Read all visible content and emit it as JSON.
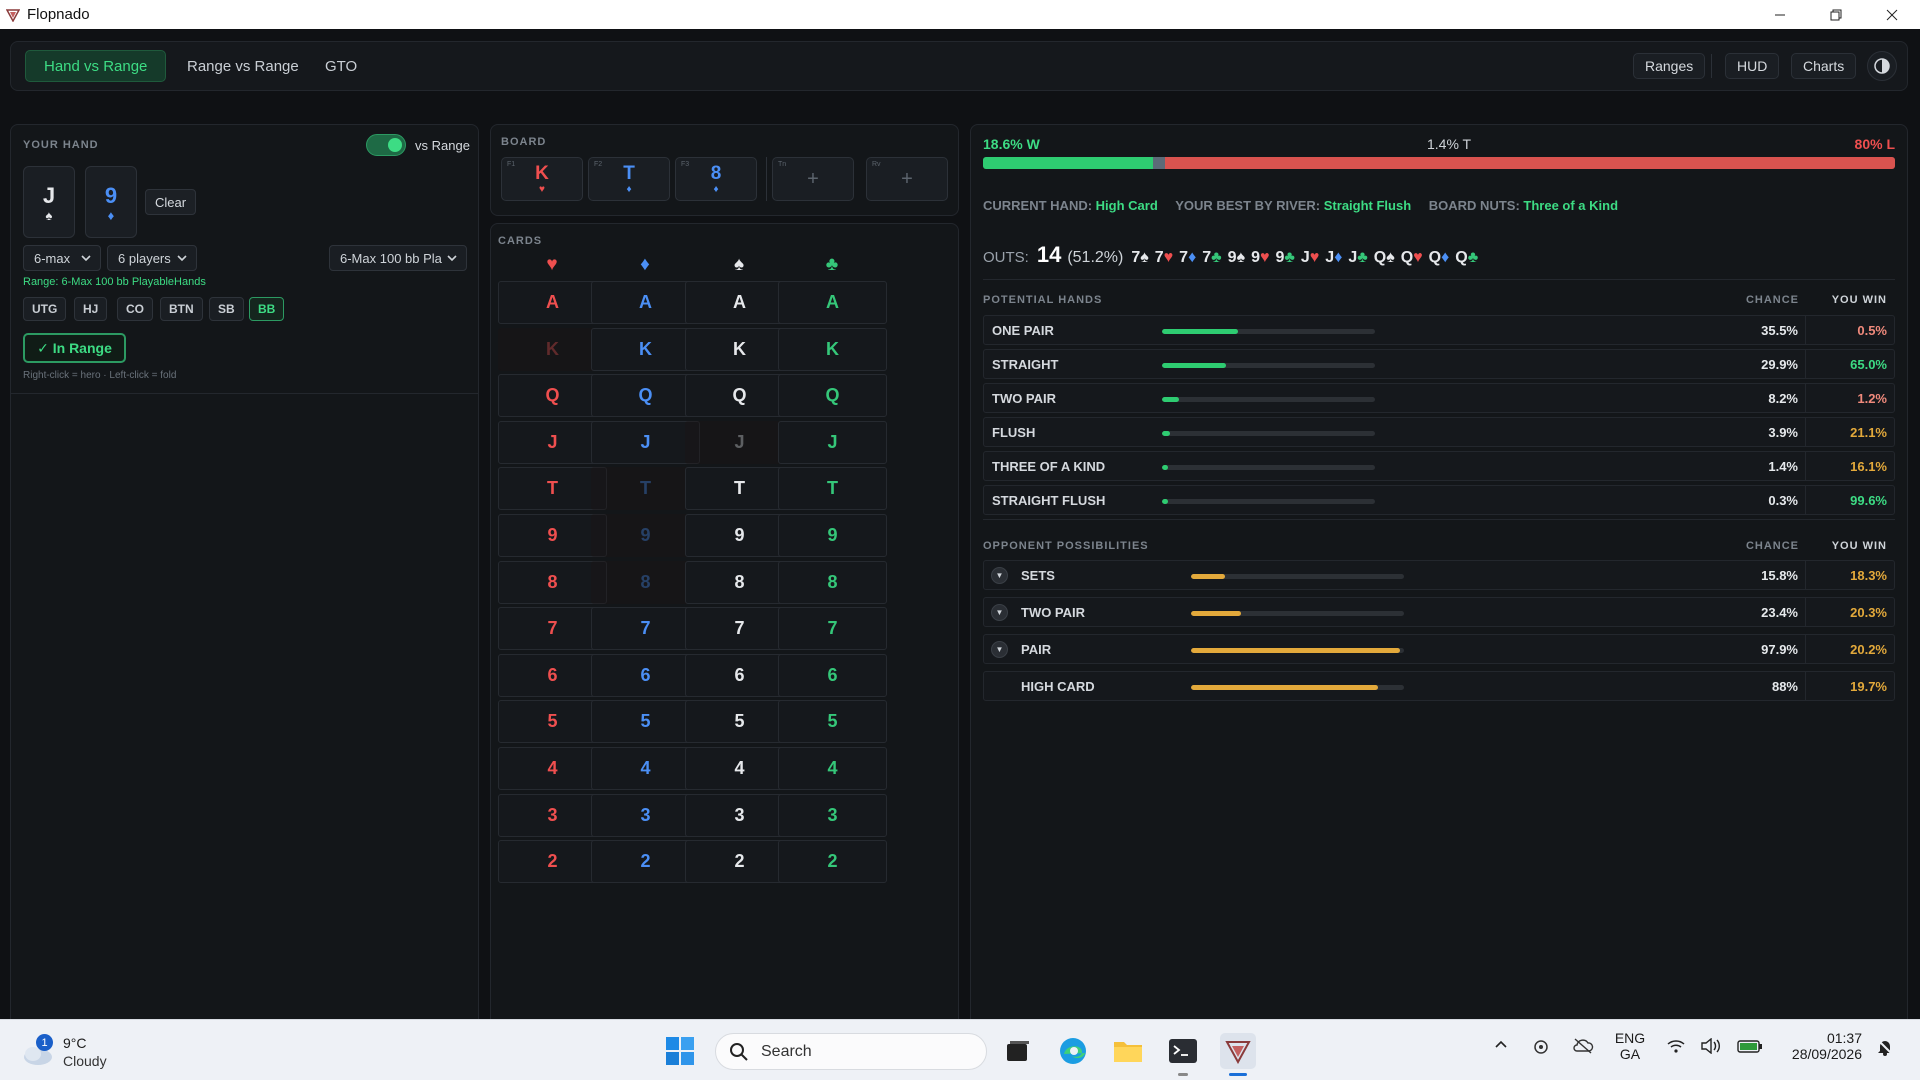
{
  "window": {
    "title": "Flopnado"
  },
  "nav": {
    "tabs": [
      {
        "label": "Hand vs Range"
      },
      {
        "label": "Range vs Range"
      },
      {
        "label": "GTO"
      }
    ],
    "right_buttons": [
      {
        "label": "Ranges"
      },
      {
        "label": "HUD"
      },
      {
        "label": "Charts"
      }
    ]
  },
  "hand": {
    "section_label": "YOUR HAND",
    "toggle_label": "vs Range",
    "cards": [
      {
        "rank": "J",
        "suit": "♠"
      },
      {
        "rank": "9",
        "suit": "♦"
      }
    ],
    "clear_label": "Clear",
    "table_size": "6-max",
    "players": "6 players",
    "range_preset": "6-Max 100 bb Pla",
    "range_text": "Range: 6-Max 100 bb PlayableHands",
    "positions": [
      "UTG",
      "HJ",
      "CO",
      "BTN",
      "SB",
      "BB"
    ],
    "active_position": "BB",
    "in_range_label": "✓ In Range",
    "hint": "Right-click = hero · Left-click = fold"
  },
  "board": {
    "section_label": "BOARD",
    "cards": [
      {
        "slot": "F1",
        "rank": "K",
        "suit": "♥"
      },
      {
        "slot": "F2",
        "rank": "T",
        "suit": "♦"
      },
      {
        "slot": "F3",
        "rank": "8",
        "suit": "♦"
      },
      {
        "slot": "Tn",
        "rank": "+",
        "suit": ""
      },
      {
        "slot": "Rv",
        "rank": "+",
        "suit": ""
      }
    ]
  },
  "cards_grid": {
    "section_label": "CARDS",
    "suits": [
      "♥",
      "♦",
      "♠",
      "♣"
    ],
    "ranks": [
      "A",
      "K",
      "Q",
      "J",
      "T",
      "9",
      "8",
      "7",
      "6",
      "5",
      "4",
      "3",
      "2"
    ],
    "used": [
      {
        "rank": "K",
        "suit": 0
      },
      {
        "rank": "T",
        "suit": 1
      },
      {
        "rank": "J",
        "suit": 2
      },
      {
        "rank": "9",
        "suit": 1
      },
      {
        "rank": "8",
        "suit": 1
      }
    ]
  },
  "equity": {
    "win_label": "18.6% W",
    "tie_label": "1.4% T",
    "loss_label": "80% L",
    "win": 18.6,
    "tie": 1.4,
    "loss": 80,
    "current_hand_label": "CURRENT HAND:",
    "current_hand": "High Card",
    "best_river_label": "YOUR BEST BY RIVER:",
    "best_river": "Straight Flush",
    "board_nuts_label": "BOARD NUTS:",
    "board_nuts": "Three of a Kind",
    "outs_label": "OUTS:",
    "outs_count": "14",
    "outs_pct": "(51.2%)",
    "outs_cards": [
      {
        "rank": "7",
        "suit": "♠"
      },
      {
        "rank": "7",
        "suit": "♥"
      },
      {
        "rank": "7",
        "suit": "♦"
      },
      {
        "rank": "7",
        "suit": "♣"
      },
      {
        "rank": "9",
        "suit": "♠"
      },
      {
        "rank": "9",
        "suit": "♥"
      },
      {
        "rank": "9",
        "suit": "♣"
      },
      {
        "rank": "J",
        "suit": "♥"
      },
      {
        "rank": "J",
        "suit": "♦"
      },
      {
        "rank": "J",
        "suit": "♣"
      },
      {
        "rank": "Q",
        "suit": "♠"
      },
      {
        "rank": "Q",
        "suit": "♥"
      },
      {
        "rank": "Q",
        "suit": "♦"
      },
      {
        "rank": "Q",
        "suit": "♣"
      }
    ],
    "potential_label": "POTENTIAL HANDS",
    "chance_label": "CHANCE",
    "you_win_label": "YOU WIN",
    "potential": [
      {
        "name": "ONE PAIR",
        "chance": "35.5%",
        "win": "0.5%",
        "value": 35.5
      },
      {
        "name": "STRAIGHT",
        "chance": "29.9%",
        "win": "65.0%",
        "value": 29.9
      },
      {
        "name": "TWO PAIR",
        "chance": "8.2%",
        "win": "1.2%",
        "value": 8.2
      },
      {
        "name": "FLUSH",
        "chance": "3.9%",
        "win": "21.1%",
        "value": 3.9
      },
      {
        "name": "THREE OF A KIND",
        "chance": "1.4%",
        "win": "16.1%",
        "value": 1.4
      },
      {
        "name": "STRAIGHT FLUSH",
        "chance": "0.3%",
        "win": "99.6%",
        "value": 0.3
      }
    ],
    "opponent_label": "OPPONENT POSSIBILITIES",
    "opponent": [
      {
        "name": "SETS",
        "chance": "15.8%",
        "win": "18.3%",
        "value": 15.8,
        "expandable": true
      },
      {
        "name": "TWO PAIR",
        "chance": "23.4%",
        "win": "20.3%",
        "value": 23.4,
        "expandable": true
      },
      {
        "name": "PAIR",
        "chance": "97.9%",
        "win": "20.2%",
        "value": 97.9,
        "expandable": true
      },
      {
        "name": "HIGH CARD",
        "chance": "88%",
        "win": "19.7%",
        "value": 88,
        "expandable": false
      }
    ]
  },
  "taskbar": {
    "weather_temp": "9°C",
    "weather_desc": "Cloudy",
    "weather_badge": "1",
    "search_label": "Search",
    "lang_top": "ENG",
    "lang_bottom": "GA",
    "time": "01:37",
    "date": "28/09/2026"
  },
  "colors": {
    "accent": "#3ddc84",
    "heart": "#ef4f4f",
    "diamond": "#4b8ff5",
    "spade": "#e6e8eb",
    "club": "#35c779",
    "loss": "#d9534f",
    "amber": "#e3a93b"
  }
}
